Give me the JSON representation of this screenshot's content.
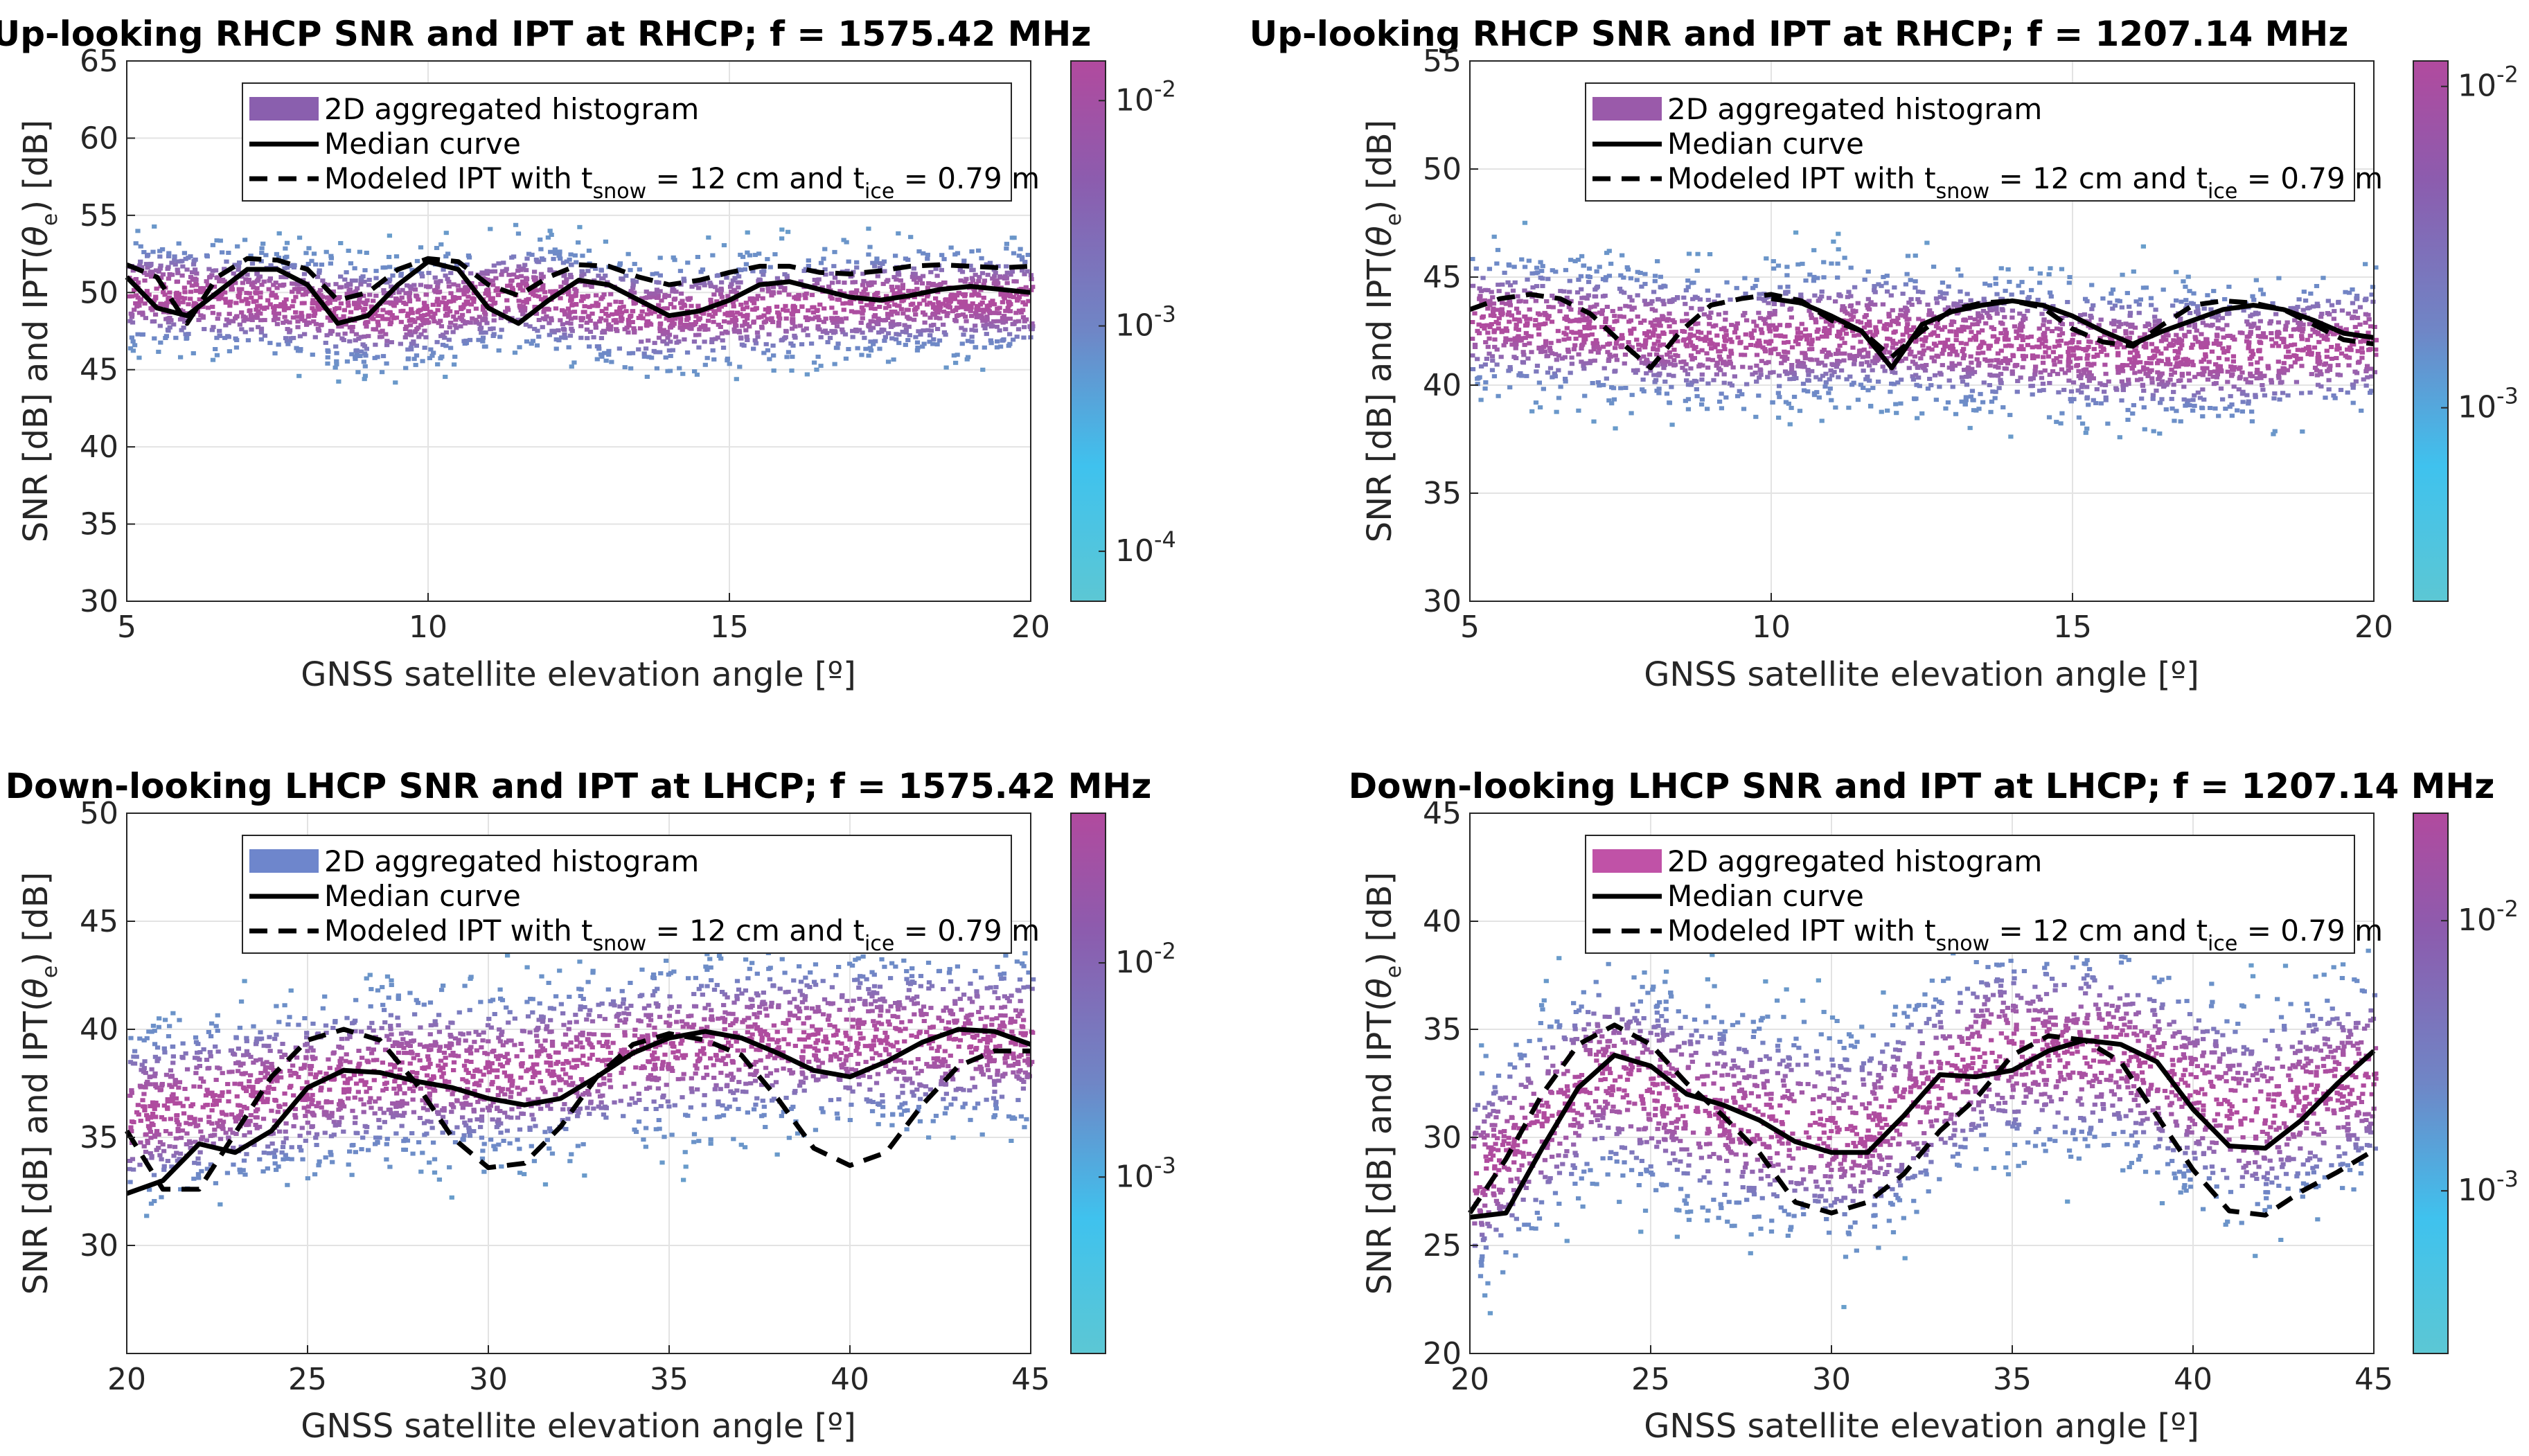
{
  "figure": {
    "xlabel": "GNSS satellite elevation angle [º]",
    "ylabel": "SNR [dB] and IPT(θe) [dB]",
    "legend": {
      "histogram": "2D aggregated histogram",
      "median": "Median curve",
      "modeled_prefix": "Modeled IPT with t",
      "modeled_snow_sub": "snow",
      "modeled_mid": " = 12 cm and t",
      "modeled_ice_sub": "ice",
      "modeled_suffix": " = 0.79 m"
    },
    "colormap": {
      "low": "#5cc7d4",
      "mid": "#6f86c6",
      "high": "#b14a9e"
    }
  },
  "chart_data": [
    {
      "type": "heatmap",
      "title": "Up-looking RHCP SNR and IPT at RHCP; f = 1575.42 MHz",
      "xlim": [
        5,
        20
      ],
      "ylim": [
        30,
        65
      ],
      "xticks": [
        5,
        10,
        15,
        20
      ],
      "yticks": [
        30,
        35,
        40,
        45,
        50,
        55,
        60,
        65
      ],
      "grid": true,
      "legend_position": "top-center",
      "legend_swatch_color": "#8a5fae",
      "colorbar": {
        "scale": "log",
        "ticks": [
          "10-4",
          "10-3",
          "10-2"
        ],
        "tick_values": [
          0.0001,
          0.001,
          0.01
        ],
        "range": [
          6e-05,
          0.015
        ]
      },
      "band": {
        "center_y": [
          50,
          49.5,
          48.5,
          50,
          48.5,
          49,
          49.5,
          49.5
        ],
        "spread": 3.5
      },
      "series": [
        {
          "name": "Median curve",
          "style": "solid",
          "x": [
            5,
            5.5,
            6,
            6.5,
            7,
            7.5,
            8,
            8.5,
            9,
            9.5,
            10,
            10.5,
            11,
            11.5,
            12,
            12.5,
            13,
            13.5,
            14,
            14.5,
            15,
            15.5,
            16,
            16.5,
            17,
            17.5,
            18,
            18.5,
            19,
            19.5,
            20
          ],
          "y": [
            51,
            49,
            48.5,
            50,
            51.5,
            51.5,
            50.5,
            48,
            48.5,
            50.5,
            52,
            51.5,
            49,
            48,
            49.5,
            50.8,
            50.5,
            49.5,
            48.5,
            48.8,
            49.5,
            50.5,
            50.7,
            50.2,
            49.7,
            49.5,
            49.8,
            50.2,
            50.4,
            50.2,
            50
          ]
        },
        {
          "name": "Modeled IPT with tsnow = 12 cm and tice = 0.79 m",
          "style": "dashed",
          "x": [
            5,
            5.5,
            6,
            6.5,
            7,
            7.5,
            8,
            8.5,
            9,
            9.5,
            10,
            10.5,
            11,
            11.5,
            12,
            12.5,
            13,
            13.5,
            14,
            14.5,
            15,
            15.5,
            16,
            16.5,
            17,
            17.5,
            18,
            18.5,
            19,
            19.5,
            20
          ],
          "y": [
            51.8,
            51,
            48,
            51,
            52.2,
            52.1,
            51.5,
            49.5,
            50,
            51.5,
            52.2,
            52,
            50.5,
            49.8,
            51,
            51.8,
            51.7,
            51,
            50.5,
            50.8,
            51.3,
            51.7,
            51.7,
            51.3,
            51.2,
            51.4,
            51.7,
            51.8,
            51.7,
            51.6,
            51.7
          ]
        }
      ]
    },
    {
      "type": "heatmap",
      "title": "Up-looking RHCP SNR and IPT at RHCP; f = 1207.14 MHz",
      "xlim": [
        5,
        20
      ],
      "ylim": [
        30,
        55
      ],
      "xticks": [
        5,
        10,
        15,
        20
      ],
      "yticks": [
        30,
        35,
        40,
        45,
        50,
        55
      ],
      "grid": true,
      "legend_position": "top-center",
      "legend_swatch_color": "#9a5aaa",
      "colorbar": {
        "scale": "log",
        "ticks": [
          "10-3",
          "10-2"
        ],
        "tick_values": [
          0.001,
          0.01
        ],
        "range": [
          0.00025,
          0.012
        ]
      },
      "band": {
        "center_y": [
          43,
          42.5,
          42,
          42.5,
          42,
          41.5,
          41.5,
          42
        ],
        "spread": 3.2
      },
      "series": [
        {
          "name": "Median curve",
          "style": "solid",
          "x": [
            10,
            10.5,
            11,
            11.5,
            12,
            12.5,
            13,
            13.5,
            14,
            14.5,
            15,
            15.5,
            16,
            16.5,
            17,
            17.5,
            18,
            18.5,
            19,
            19.5,
            20
          ],
          "y": [
            44,
            43.8,
            43.2,
            42.5,
            40.8,
            42.8,
            43.4,
            43.7,
            43.9,
            43.7,
            43.2,
            42.5,
            41.9,
            42.5,
            43,
            43.5,
            43.7,
            43.5,
            43,
            42.4,
            42.2
          ]
        },
        {
          "name": "Modeled IPT with tsnow = 12 cm and tice = 0.79 m",
          "style": "dashed",
          "x": [
            5,
            5.5,
            6,
            6.5,
            7,
            7.5,
            8,
            8.5,
            9,
            9.5,
            10,
            10.5,
            11,
            11.5,
            12,
            12.5,
            13,
            13.5,
            14,
            14.5,
            15,
            15.5,
            16,
            16.5,
            17,
            17.5,
            18,
            18.5,
            19,
            19.5,
            20
          ],
          "y": [
            43.5,
            44,
            44.2,
            44,
            43.3,
            42,
            40.8,
            42.5,
            43.7,
            44,
            44.2,
            43.9,
            43,
            42.5,
            41.3,
            42.5,
            43.5,
            43.8,
            43.9,
            43.6,
            42.6,
            42,
            41.8,
            42.8,
            43.7,
            43.9,
            43.8,
            43.5,
            42.8,
            42.1,
            41.9
          ]
        }
      ]
    },
    {
      "type": "heatmap",
      "title": "Down-looking LHCP SNR and IPT at LHCP; f = 1575.42 MHz",
      "xlim": [
        20,
        45
      ],
      "ylim": [
        25,
        50
      ],
      "xticks": [
        20,
        25,
        30,
        35,
        40,
        45
      ],
      "yticks": [
        30,
        35,
        40,
        45,
        50
      ],
      "grid": true,
      "legend_position": "top-center",
      "legend_swatch_color": "#6e86cc",
      "colorbar": {
        "scale": "log",
        "ticks": [
          "10-3",
          "10-2"
        ],
        "tick_values": [
          0.001,
          0.01
        ],
        "range": [
          0.00015,
          0.05
        ]
      },
      "band": {
        "center_y": [
          36,
          37,
          38,
          38,
          39,
          39.5,
          39.5,
          39.5
        ],
        "spread": 4
      },
      "series": [
        {
          "name": "Median curve",
          "style": "solid",
          "x": [
            20,
            21,
            22,
            23,
            24,
            25,
            26,
            27,
            28,
            29,
            30,
            31,
            32,
            33,
            34,
            35,
            36,
            37,
            38,
            39,
            40,
            41,
            42,
            43,
            44,
            45
          ],
          "y": [
            32.4,
            33,
            34.7,
            34.3,
            35.3,
            37.3,
            38.1,
            38,
            37.6,
            37.3,
            36.8,
            36.5,
            36.8,
            37.8,
            38.9,
            39.6,
            39.9,
            39.6,
            38.9,
            38.1,
            37.8,
            38.5,
            39.4,
            40,
            39.9,
            39.3
          ]
        },
        {
          "name": "Modeled IPT with tsnow = 12 cm and tice = 0.79 m",
          "style": "dashed",
          "x": [
            20,
            21,
            22,
            23,
            24,
            25,
            26,
            27,
            28,
            29,
            30,
            31,
            32,
            33,
            34,
            35,
            36,
            37,
            38,
            39,
            40,
            41,
            42,
            43,
            44,
            45
          ],
          "y": [
            35.3,
            32.6,
            32.6,
            35.2,
            37.8,
            39.5,
            40,
            39.5,
            37.5,
            35,
            33.6,
            33.8,
            35.5,
            37.8,
            39.3,
            39.8,
            39.5,
            38.8,
            36.8,
            34.5,
            33.7,
            34.3,
            36.5,
            38.3,
            39,
            39
          ]
        }
      ]
    },
    {
      "type": "heatmap",
      "title": "Down-looking LHCP SNR and IPT at LHCP; f = 1207.14 MHz",
      "xlim": [
        20,
        45
      ],
      "ylim": [
        20,
        45
      ],
      "xticks": [
        20,
        25,
        30,
        35,
        40,
        45
      ],
      "yticks": [
        20,
        25,
        30,
        35,
        40,
        45
      ],
      "grid": true,
      "legend_position": "top-center",
      "legend_swatch_color": "#c052a7",
      "colorbar": {
        "scale": "log",
        "ticks": [
          "10-3",
          "10-2"
        ],
        "tick_values": [
          0.001,
          0.01
        ],
        "range": [
          0.00025,
          0.025
        ]
      },
      "band": {
        "center_y": [
          28,
          33,
          31,
          30,
          34,
          34,
          31,
          33
        ],
        "spread": 5
      },
      "series": [
        {
          "name": "Median curve",
          "style": "solid",
          "x": [
            20,
            21,
            22,
            23,
            24,
            25,
            26,
            27,
            28,
            29,
            30,
            31,
            32,
            33,
            34,
            35,
            36,
            37,
            38,
            39,
            40,
            41,
            42,
            43,
            44,
            45
          ],
          "y": [
            26.3,
            26.5,
            29.5,
            32.3,
            33.8,
            33.3,
            32,
            31.5,
            30.8,
            29.8,
            29.3,
            29.3,
            31,
            32.9,
            32.8,
            33.1,
            34,
            34.5,
            34.3,
            33.5,
            31.3,
            29.6,
            29.5,
            30.8,
            32.5,
            34
          ]
        },
        {
          "name": "Modeled IPT with tsnow = 12 cm and tice = 0.79 m",
          "style": "dashed",
          "x": [
            20,
            21,
            22,
            23,
            24,
            25,
            26,
            27,
            28,
            29,
            30,
            31,
            32,
            33,
            34,
            35,
            36,
            37,
            38,
            39,
            40,
            41,
            42,
            43,
            44,
            45
          ],
          "y": [
            26.5,
            29,
            32,
            34.3,
            35.2,
            34.3,
            32.5,
            31,
            29.3,
            27,
            26.5,
            27,
            28.3,
            30.3,
            31.8,
            33.8,
            34.7,
            34.5,
            33.5,
            31,
            28.5,
            26.6,
            26.4,
            27.5,
            28.4,
            29.4
          ]
        }
      ]
    }
  ]
}
